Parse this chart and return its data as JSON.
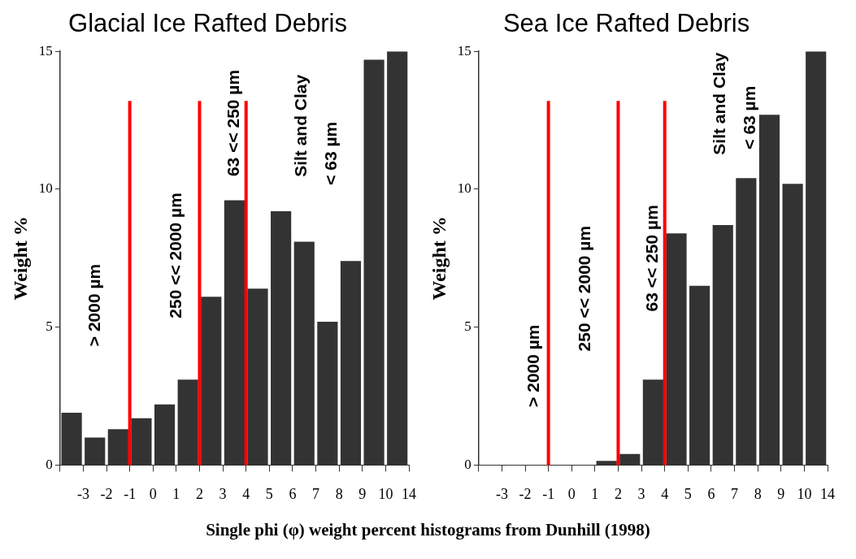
{
  "chart_data": [
    {
      "type": "bar",
      "title": "Glacial Ice Rafted Debris",
      "ylabel": "Weight %",
      "categories": [
        "-3",
        "-2",
        "-1",
        "0",
        "1",
        "2",
        "3",
        "4",
        "5",
        "6",
        "7",
        "8",
        "9",
        "10",
        "14"
      ],
      "values": [
        1.9,
        1.0,
        1.3,
        1.7,
        2.2,
        3.1,
        6.1,
        9.6,
        6.4,
        9.2,
        8.1,
        5.2,
        7.4,
        14.7,
        15.0
      ],
      "color": "#333333",
      "ylim": [
        0,
        15
      ],
      "yticks": [
        0,
        5,
        10,
        15
      ],
      "ref_lines": [
        {
          "axis": "x",
          "value": "-1",
          "color": "#ff0000"
        },
        {
          "axis": "x",
          "value": "2",
          "color": "#ff0000"
        },
        {
          "axis": "x",
          "value": "4",
          "color": "#ff0000"
        }
      ],
      "annotations": [
        "> 2000 µm",
        "250 << 2000 µm",
        "63 << 250 µm",
        "Silt and Clay",
        "< 63 µm"
      ]
    },
    {
      "type": "bar",
      "title": "Sea Ice Rafted Debris",
      "ylabel": "Weight %",
      "categories": [
        "-3",
        "-2",
        "-1",
        "0",
        "1",
        "2",
        "3",
        "4",
        "5",
        "6",
        "7",
        "8",
        "9",
        "10",
        "14"
      ],
      "values": [
        0,
        0,
        0,
        0,
        0,
        0.15,
        0.4,
        3.1,
        8.4,
        6.5,
        8.7,
        10.4,
        12.7,
        10.2,
        15.0
      ],
      "color": "#333333",
      "ylim": [
        0,
        15
      ],
      "yticks": [
        0,
        5,
        10,
        15
      ],
      "ref_lines": [
        {
          "axis": "x",
          "value": "-1",
          "color": "#ff0000"
        },
        {
          "axis": "x",
          "value": "2",
          "color": "#ff0000"
        },
        {
          "axis": "x",
          "value": "4",
          "color": "#ff0000"
        }
      ],
      "annotations": [
        "> 2000 µm",
        "250 << 2000 µm",
        "63 << 250 µm",
        "Silt and Clay",
        "< 63 µm",
        "Single phi (φ) weight percent histograms from Dunhill (1998)"
      ]
    }
  ]
}
